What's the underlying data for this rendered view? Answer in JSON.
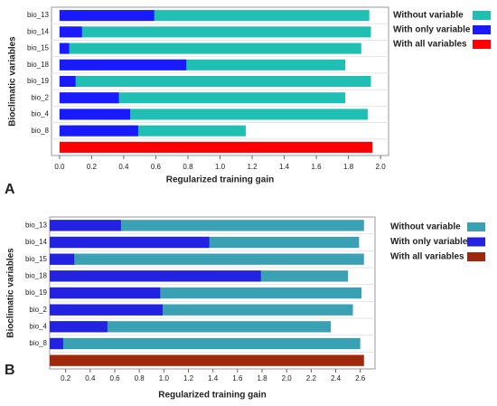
{
  "chart_data": [
    {
      "type": "bar",
      "orientation": "horizontal",
      "overlap": true,
      "panel_label": "A",
      "xlabel": "Regularized training gain",
      "ylabel": "Bioclimatic variables",
      "categories": [
        "bio_13",
        "bio_14",
        "bio_15",
        "bio_18",
        "bio_19",
        "bio_2",
        "bio_4",
        "bio_8",
        null
      ],
      "series": [
        {
          "name": "Without variable",
          "color": "#1fbfb3",
          "values": [
            1.93,
            1.94,
            1.88,
            1.78,
            1.94,
            1.78,
            1.92,
            1.16,
            null
          ]
        },
        {
          "name": "With only variable",
          "color": "#1a1aff",
          "values": [
            0.59,
            0.14,
            0.06,
            0.79,
            0.1,
            0.37,
            0.44,
            0.49,
            null
          ]
        },
        {
          "name": "With all variables",
          "color": "#ff0000",
          "values": [
            null,
            null,
            null,
            null,
            null,
            null,
            null,
            null,
            1.95
          ]
        }
      ],
      "xlim": [
        -0.05,
        2.05
      ],
      "xticks": [
        {
          "value": 0,
          "label": "0.0"
        },
        0.2,
        0.4,
        0.6,
        0.8,
        {
          "value": 1,
          "label": "1.0"
        },
        1.2,
        1.4,
        1.6,
        1.8,
        {
          "value": 2,
          "label": "2.0"
        }
      ]
    },
    {
      "type": "bar",
      "orientation": "horizontal",
      "overlap": true,
      "panel_label": "B",
      "xlabel": "Regularized training gain",
      "ylabel": "Bioclimatic variables",
      "categories": [
        "bio_13",
        "bio_14",
        "bio_15",
        "bio_18",
        "bio_19",
        "bio_2",
        "bio_4",
        "bio_8",
        null
      ],
      "series": [
        {
          "name": "Without variable",
          "color": "#3aa0b4",
          "values": [
            2.63,
            2.59,
            2.63,
            2.5,
            2.61,
            2.54,
            2.36,
            2.6,
            null
          ]
        },
        {
          "name": "With only variable",
          "color": "#2222e0",
          "values": [
            0.65,
            1.37,
            0.27,
            1.79,
            0.97,
            0.99,
            0.54,
            0.18,
            null
          ]
        },
        {
          "name": "With all variables",
          "color": "#a0280a",
          "values": [
            null,
            null,
            null,
            null,
            null,
            null,
            null,
            null,
            2.63
          ]
        }
      ],
      "xlim": [
        0.07,
        2.72
      ],
      "xticks": [
        0.2,
        0.4,
        0.6,
        0.8,
        {
          "value": 1,
          "label": "1.0"
        },
        1.2,
        1.4,
        1.6,
        1.8,
        {
          "value": 2,
          "label": "2.0"
        },
        2.2,
        2.4,
        2.6
      ]
    }
  ]
}
